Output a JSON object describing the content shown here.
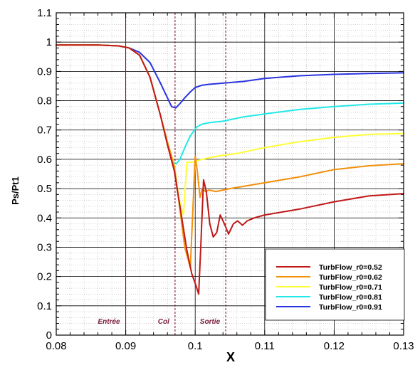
{
  "chart_data": {
    "type": "line",
    "xlabel": "X",
    "ylabel": "Ps/Pt1",
    "xlim": [
      0.08,
      0.13
    ],
    "ylim": [
      0,
      1.1
    ],
    "xticks": [
      0.08,
      0.09,
      0.1,
      0.11,
      0.12,
      0.13
    ],
    "xtick_labels": [
      "0.08",
      "0.09",
      "0.1",
      "0.11",
      "0.12",
      "0.13"
    ],
    "yticks": [
      0,
      0.1,
      0.2,
      0.3,
      0.4,
      0.5,
      0.6,
      0.7,
      0.8,
      0.9,
      1,
      1.1
    ],
    "ytick_labels": [
      "0",
      "0.1",
      "0.2",
      "0.3",
      "0.4",
      "0.5",
      "0.6",
      "0.7",
      "0.8",
      "0.9",
      "1",
      "1.1"
    ],
    "grid": true,
    "legend_position": "bottom-right",
    "colors": {
      "annotation": "#7a1a3a",
      "grid_major": "#000000",
      "grid_minor": "#b5b5b5"
    },
    "annotations": [
      {
        "text": "Entrée",
        "x": 0.09
      },
      {
        "text": "Col",
        "x": 0.0971
      },
      {
        "text": "Sortie",
        "x": 0.1044
      }
    ],
    "series": [
      {
        "name": "TurbFlow_r0=0.52",
        "color": "#c01818",
        "x": [
          0.08,
          0.086,
          0.089,
          0.0905,
          0.092,
          0.0935,
          0.095,
          0.096,
          0.097,
          0.0978,
          0.0988,
          0.0995,
          0.1001,
          0.1005,
          0.1008,
          0.1012,
          0.1016,
          0.1021,
          0.1026,
          0.1031,
          0.1036,
          0.1042,
          0.1048,
          0.1055,
          0.1061,
          0.1068,
          0.1075,
          0.1085,
          0.11,
          0.115,
          0.12,
          0.125,
          0.13
        ],
        "y": [
          0.99,
          0.99,
          0.987,
          0.98,
          0.955,
          0.88,
          0.75,
          0.65,
          0.56,
          0.44,
          0.29,
          0.21,
          0.17,
          0.14,
          0.3,
          0.53,
          0.49,
          0.38,
          0.335,
          0.35,
          0.41,
          0.38,
          0.345,
          0.38,
          0.39,
          0.375,
          0.39,
          0.4,
          0.41,
          0.43,
          0.455,
          0.475,
          0.483
        ]
      },
      {
        "name": "TurbFlow_r0=0.62",
        "color": "#f2900c",
        "x": [
          0.08,
          0.086,
          0.089,
          0.0905,
          0.092,
          0.0935,
          0.095,
          0.096,
          0.097,
          0.0978,
          0.0985,
          0.0993,
          0.1,
          0.1003,
          0.1007,
          0.101,
          0.1015,
          0.102,
          0.103,
          0.105,
          0.11,
          0.115,
          0.12,
          0.125,
          0.13
        ],
        "y": [
          0.99,
          0.99,
          0.987,
          0.98,
          0.955,
          0.88,
          0.75,
          0.66,
          0.575,
          0.43,
          0.3,
          0.23,
          0.61,
          0.56,
          0.47,
          0.5,
          0.49,
          0.495,
          0.49,
          0.5,
          0.52,
          0.54,
          0.565,
          0.578,
          0.585
        ]
      },
      {
        "name": "TurbFlow_r0=0.71",
        "color": "#ffff33",
        "x": [
          0.08,
          0.086,
          0.089,
          0.0905,
          0.092,
          0.0935,
          0.095,
          0.096,
          0.097,
          0.0977,
          0.0983,
          0.0988,
          0.0995,
          0.1003,
          0.101,
          0.102,
          0.103,
          0.1045,
          0.106,
          0.11,
          0.115,
          0.12,
          0.125,
          0.13
        ],
        "y": [
          0.99,
          0.99,
          0.987,
          0.98,
          0.955,
          0.88,
          0.75,
          0.66,
          0.58,
          0.46,
          0.41,
          0.59,
          0.59,
          0.595,
          0.6,
          0.605,
          0.61,
          0.615,
          0.62,
          0.64,
          0.66,
          0.675,
          0.685,
          0.688
        ]
      },
      {
        "name": "TurbFlow_r0=0.81",
        "color": "#22e8e8",
        "x": [
          0.08,
          0.086,
          0.089,
          0.0905,
          0.092,
          0.0935,
          0.095,
          0.096,
          0.0968,
          0.0973,
          0.0978,
          0.0985,
          0.0993,
          0.1002,
          0.101,
          0.102,
          0.104,
          0.107,
          0.11,
          0.115,
          0.12,
          0.125,
          0.13
        ],
        "y": [
          0.99,
          0.99,
          0.987,
          0.98,
          0.955,
          0.88,
          0.75,
          0.66,
          0.59,
          0.585,
          0.6,
          0.64,
          0.68,
          0.71,
          0.72,
          0.725,
          0.73,
          0.745,
          0.755,
          0.77,
          0.78,
          0.788,
          0.792
        ]
      },
      {
        "name": "TurbFlow_r0=0.91",
        "color": "#2a34e0",
        "x": [
          0.08,
          0.086,
          0.089,
          0.0905,
          0.092,
          0.0935,
          0.095,
          0.096,
          0.0966,
          0.0972,
          0.0978,
          0.0985,
          0.0993,
          0.1,
          0.101,
          0.102,
          0.104,
          0.107,
          0.11,
          0.115,
          0.12,
          0.125,
          0.13
        ],
        "y": [
          0.99,
          0.99,
          0.987,
          0.98,
          0.965,
          0.93,
          0.86,
          0.81,
          0.78,
          0.775,
          0.79,
          0.81,
          0.83,
          0.845,
          0.853,
          0.856,
          0.86,
          0.866,
          0.876,
          0.885,
          0.89,
          0.893,
          0.895
        ]
      }
    ]
  }
}
